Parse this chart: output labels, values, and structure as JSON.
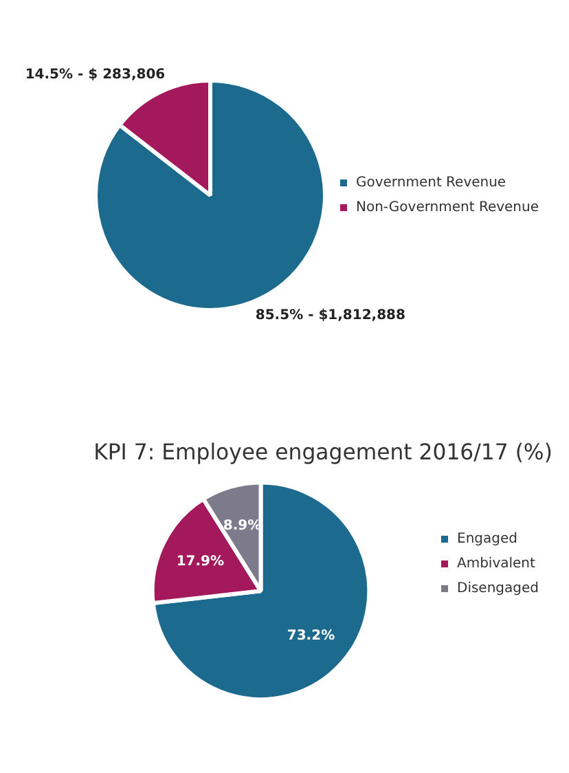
{
  "chart_data": [
    {
      "type": "pie",
      "categories": [
        "Government Revenue",
        "Non-Government Revenue"
      ],
      "values": [
        85.5,
        14.5
      ],
      "colors": [
        "#1c6a8e",
        "#a3195b"
      ],
      "value_labels": [
        "85.5% - $1,812,888",
        "14.5% - $ 283,806"
      ],
      "legend": "right"
    },
    {
      "type": "pie",
      "title": "KPI 7: Employee engagement 2016/17 (%)",
      "categories": [
        "Engaged",
        "Ambivalent",
        "Disengaged"
      ],
      "values": [
        73.2,
        17.9,
        8.9
      ],
      "colors": [
        "#1c6a8e",
        "#a3195b",
        "#7d7a8c"
      ],
      "value_labels": [
        "73.2%",
        "17.9%",
        "8.9%"
      ],
      "legend": "right"
    }
  ]
}
